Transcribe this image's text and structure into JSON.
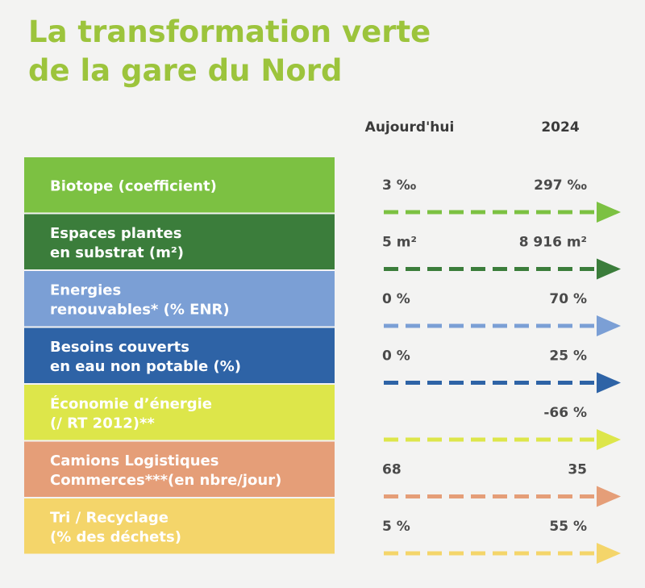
{
  "header": {
    "title_lines": [
      "La transformation verte",
      "de la gare du Nord"
    ]
  },
  "columns": [
    "Aujourd'hui",
    "2024"
  ],
  "rows": [
    {
      "label_lines": [
        "Biotope (coefficient)"
      ],
      "today": "3 ‰",
      "future": "297 ‰",
      "color": "#7cc142"
    },
    {
      "label_lines": [
        "Espaces plantes",
        "en substrat (m²)"
      ],
      "today": "5 m²",
      "future": "8 916 m²",
      "color": "#3b7d3b"
    },
    {
      "label_lines": [
        "Energies",
        "renouvables* (% ENR)"
      ],
      "today": "0 %",
      "future": "70 %",
      "color": "#7b9fd5"
    },
    {
      "label_lines": [
        "Besoins couverts",
        "en eau non potable (%)"
      ],
      "today": "0 %",
      "future": "25 %",
      "color": "#2e63a6"
    },
    {
      "label_lines": [
        "Économie d’énergie",
        "(/ RT 2012)**"
      ],
      "future": "-66 %",
      "color": "#dde64a"
    },
    {
      "label_lines": [
        "Camions Logistiques",
        "Commerces***(en nbre/jour)"
      ],
      "today": "68",
      "future": "35",
      "color": "#e59e78"
    },
    {
      "label_lines": [
        "Tri / Recyclage",
        "(% des déchets)"
      ],
      "today": "5 %",
      "future": "55 %",
      "color": "#f4d56a"
    }
  ]
}
